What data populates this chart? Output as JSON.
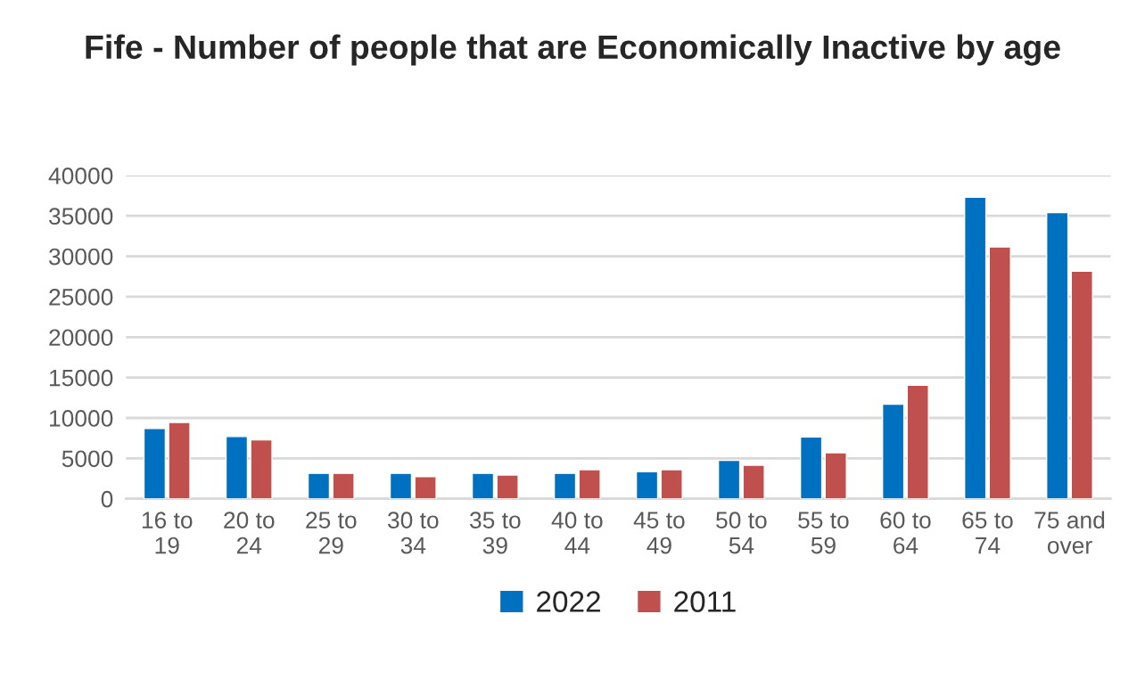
{
  "chart_data": {
    "type": "bar",
    "title": "Fife - Number of people that are Economically Inactive by age",
    "categories": [
      "16 to 19",
      "20 to 24",
      "25 to 29",
      "30 to 34",
      "35 to 39",
      "40 to 44",
      "45 to 49",
      "50 to 54",
      "55 to 59",
      "60 to 64",
      "65 to 74",
      "75 and over"
    ],
    "series": [
      {
        "name": "2022",
        "color": "#0070c0",
        "values": [
          8700,
          7700,
          3150,
          3150,
          3150,
          3150,
          3350,
          4750,
          7650,
          11700,
          37300,
          35400
        ]
      },
      {
        "name": "2011",
        "color": "#c0504d",
        "values": [
          9450,
          7300,
          3150,
          2750,
          2950,
          3600,
          3600,
          4150,
          5700,
          14050,
          31150,
          28150
        ]
      }
    ],
    "ylim": [
      0,
      40000
    ],
    "yticks": [
      0,
      5000,
      10000,
      15000,
      20000,
      25000,
      30000,
      35000,
      40000
    ],
    "grid": "y",
    "legend": "bottom"
  }
}
